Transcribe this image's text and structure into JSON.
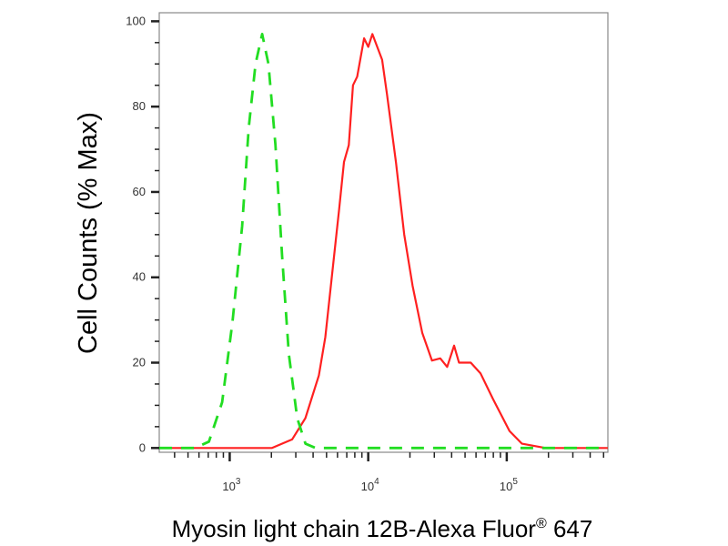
{
  "chart_data": {
    "type": "line",
    "title": "",
    "xlabel": "Myosin light chain 12B-Alexa Fluor",
    "xlabel_superscript": "®",
    "xlabel_suffix": " 647",
    "ylabel": "Cell Counts (% Max)",
    "x_scale": "log",
    "xlim": [
      310,
      537000
    ],
    "ylim": [
      -1,
      102
    ],
    "x_ticks": [
      {
        "value": 1000,
        "base": "10",
        "exp": "3"
      },
      {
        "value": 10000,
        "base": "10",
        "exp": "4"
      },
      {
        "value": 100000,
        "base": "10",
        "exp": "5"
      }
    ],
    "y_ticks": [
      0,
      20,
      40,
      60,
      80,
      100
    ],
    "grid": false,
    "legend": "none",
    "series": [
      {
        "color": "#ff2020",
        "style": "solid",
        "points": [
          [
            310,
            0
          ],
          [
            2020,
            0
          ],
          [
            2820,
            2
          ],
          [
            3520,
            7
          ],
          [
            4400,
            17
          ],
          [
            4900,
            26
          ],
          [
            5500,
            41
          ],
          [
            6170,
            56
          ],
          [
            6680,
            67
          ],
          [
            7240,
            71
          ],
          [
            7760,
            85
          ],
          [
            8320,
            87
          ],
          [
            9330,
            96
          ],
          [
            10000,
            94
          ],
          [
            10720,
            97
          ],
          [
            12590,
            91
          ],
          [
            13650,
            83
          ],
          [
            15850,
            67
          ],
          [
            18200,
            50
          ],
          [
            20890,
            38
          ],
          [
            24550,
            27
          ],
          [
            28840,
            20.5
          ],
          [
            33110,
            21
          ],
          [
            37150,
            19
          ],
          [
            41690,
            24
          ],
          [
            45190,
            20
          ],
          [
            54950,
            20
          ],
          [
            64570,
            17.5
          ],
          [
            79430,
            11.5
          ],
          [
            104700,
            4
          ],
          [
            128800,
            1
          ],
          [
            190500,
            0
          ],
          [
            537000,
            0
          ]
        ]
      },
      {
        "color": "#22dd22",
        "style": "dashed",
        "points": [
          [
            310,
            0
          ],
          [
            562,
            0
          ],
          [
            708,
            1.5
          ],
          [
            881,
            10.7
          ],
          [
            1047,
            29.6
          ],
          [
            1230,
            52
          ],
          [
            1371,
            75
          ],
          [
            1535,
            90
          ],
          [
            1714,
            97
          ],
          [
            1905,
            90
          ],
          [
            2138,
            71
          ],
          [
            2388,
            45
          ],
          [
            2673,
            22
          ],
          [
            3069,
            7
          ],
          [
            3524,
            1
          ],
          [
            4169,
            0
          ],
          [
            537000,
            0
          ]
        ]
      }
    ]
  }
}
